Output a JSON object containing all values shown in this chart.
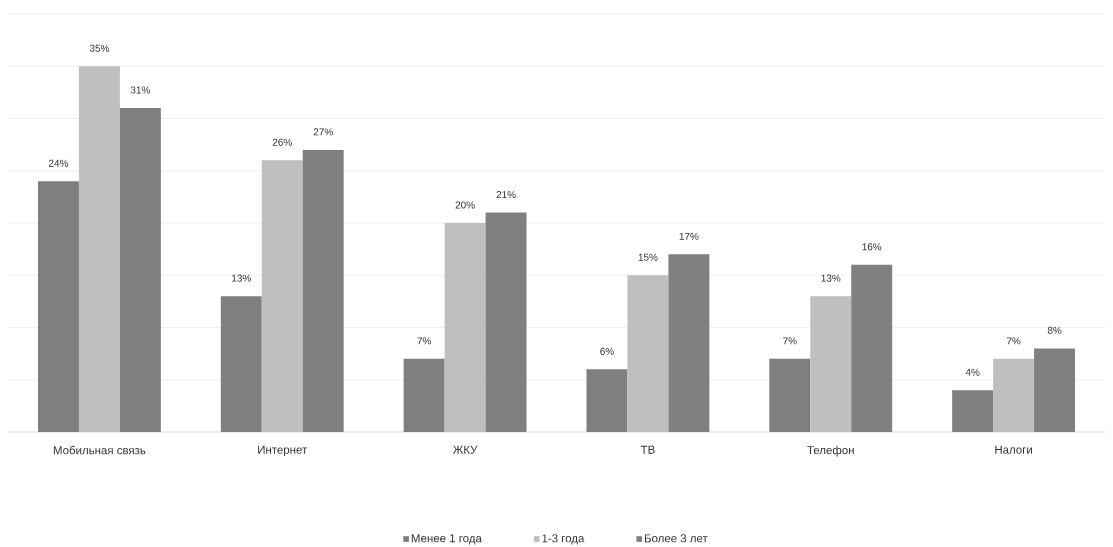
{
  "chart_data": {
    "type": "bar",
    "categories": [
      "Мобильная связь",
      "Интернет",
      "ЖКУ",
      "ТВ",
      "Телефон",
      "Налоги"
    ],
    "series": [
      {
        "name": "Менее 1 года",
        "color": "#7f7f7f",
        "values": [
          24,
          13,
          7,
          6,
          7,
          4
        ],
        "value_labels": [
          "24%",
          "13%",
          "7%",
          "6%",
          "7%",
          "4%"
        ]
      },
      {
        "name": "1-3 года",
        "color": "#bfbfbf",
        "values": [
          35,
          26,
          20,
          15,
          13,
          7
        ],
        "value_labels": [
          "35%",
          "26%",
          "20%",
          "15%",
          "13%",
          "7%"
        ]
      },
      {
        "name": "Более 3 лет",
        "color": "#808080",
        "values": [
          31,
          27,
          21,
          17,
          16,
          8
        ],
        "value_labels": [
          "31%",
          "27%",
          "21%",
          "17%",
          "16%",
          "8%"
        ]
      }
    ],
    "tick_labels": "x",
    "data_labels": true,
    "grid": "y",
    "legend": "bottom"
  }
}
